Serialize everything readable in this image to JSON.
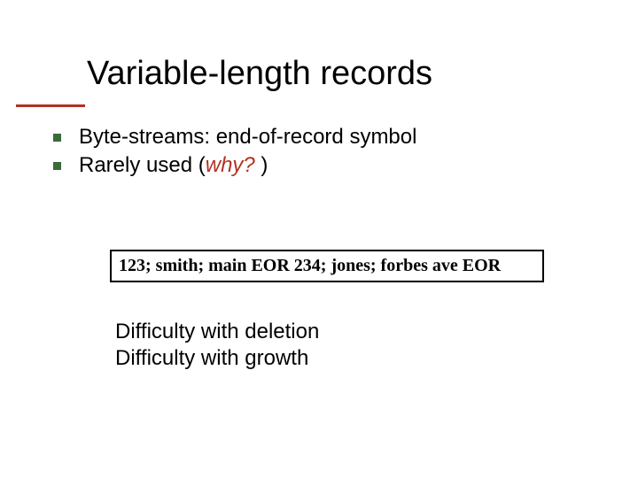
{
  "slide": {
    "title": "Variable-length records",
    "title_color": "#000000",
    "title_fontsize": 38,
    "underline_color": "#b23223",
    "bullet_marker_color": "#3b6b3b",
    "bullets": [
      {
        "text": "Byte-streams: end-of-record symbol"
      },
      {
        "prefix": "Rarely used (",
        "emph": "why?",
        "suffix": " )"
      }
    ],
    "box": {
      "text": "123; smith; main EOR 234; jones; forbes ave EOR",
      "border_color": "#000000",
      "font_family": "Times New Roman",
      "font_weight": "bold",
      "fontsize": 20
    },
    "difficulty": {
      "line1": "Difficulty with deletion",
      "line2": "Difficulty with growth",
      "fontsize": 24
    },
    "background_color": "#ffffff",
    "body_fontsize": 24,
    "emph_color": "#b23223"
  }
}
